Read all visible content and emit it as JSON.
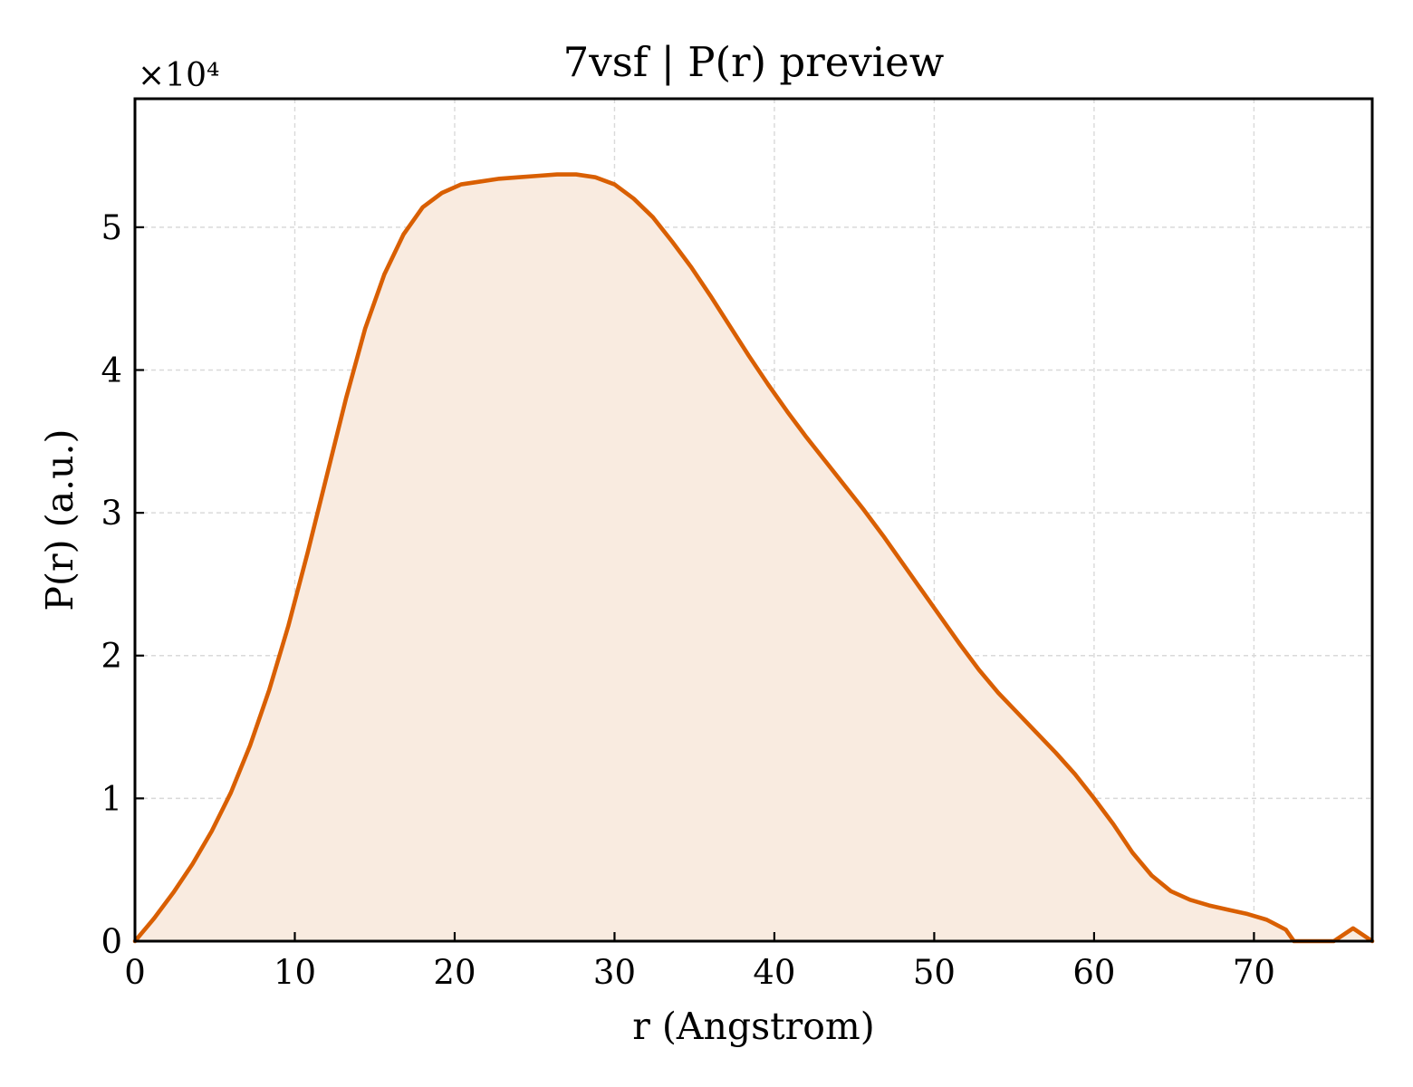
{
  "chart_data": {
    "type": "area",
    "title": "7vsf | P(r) preview",
    "xlabel": "r (Angstrom)",
    "ylabel": "P(r) (a.u.)",
    "y_offset_text": "×10⁴",
    "xlim": [
      0,
      77.4
    ],
    "ylim": [
      0,
      5.9
    ],
    "y_multiplier": 10000,
    "xticks": [
      0,
      10,
      20,
      30,
      40,
      50,
      60,
      70
    ],
    "xtick_labels": [
      "0",
      "10",
      "20",
      "30",
      "40",
      "50",
      "60",
      "70"
    ],
    "yticks": [
      0,
      1,
      2,
      3,
      4,
      5
    ],
    "ytick_labels": [
      "0",
      "1",
      "2",
      "3",
      "4",
      "5"
    ],
    "grid": true,
    "line_color": "#d95f02",
    "fill_color": "#f9ebe0",
    "series": [
      {
        "x": [
          0,
          1.2,
          2.4,
          3.6,
          4.8,
          6.0,
          7.2,
          8.4,
          9.6,
          10.8,
          12.0,
          13.2,
          14.4,
          15.6,
          16.8,
          18.0,
          19.2,
          20.4,
          21.6,
          22.8,
          24.0,
          25.2,
          26.4,
          27.6,
          28.8,
          30.0,
          31.2,
          32.4,
          33.6,
          34.8,
          36.0,
          37.2,
          38.4,
          39.6,
          40.8,
          42.0,
          43.2,
          44.4,
          45.6,
          46.8,
          48.0,
          49.2,
          50.4,
          51.6,
          52.8,
          54.0,
          55.2,
          56.4,
          57.6,
          58.8,
          60.0,
          61.2,
          62.4,
          63.6,
          64.8,
          66.0,
          67.2,
          68.4,
          69.6,
          70.8,
          72.0,
          72.5,
          75.0,
          76.2,
          77.4
        ],
        "y": [
          0.0,
          0.16,
          0.34,
          0.54,
          0.77,
          1.04,
          1.37,
          1.76,
          2.21,
          2.72,
          3.26,
          3.8,
          4.29,
          4.67,
          4.95,
          5.14,
          5.24,
          5.3,
          5.32,
          5.34,
          5.35,
          5.36,
          5.37,
          5.37,
          5.35,
          5.3,
          5.2,
          5.07,
          4.9,
          4.72,
          4.52,
          4.31,
          4.1,
          3.9,
          3.71,
          3.53,
          3.36,
          3.19,
          3.02,
          2.84,
          2.65,
          2.46,
          2.27,
          2.08,
          1.9,
          1.74,
          1.6,
          1.46,
          1.32,
          1.17,
          1.0,
          0.82,
          0.62,
          0.46,
          0.35,
          0.29,
          0.25,
          0.22,
          0.19,
          0.15,
          0.08,
          0.0,
          0.0,
          0.09,
          0.0
        ]
      }
    ]
  }
}
